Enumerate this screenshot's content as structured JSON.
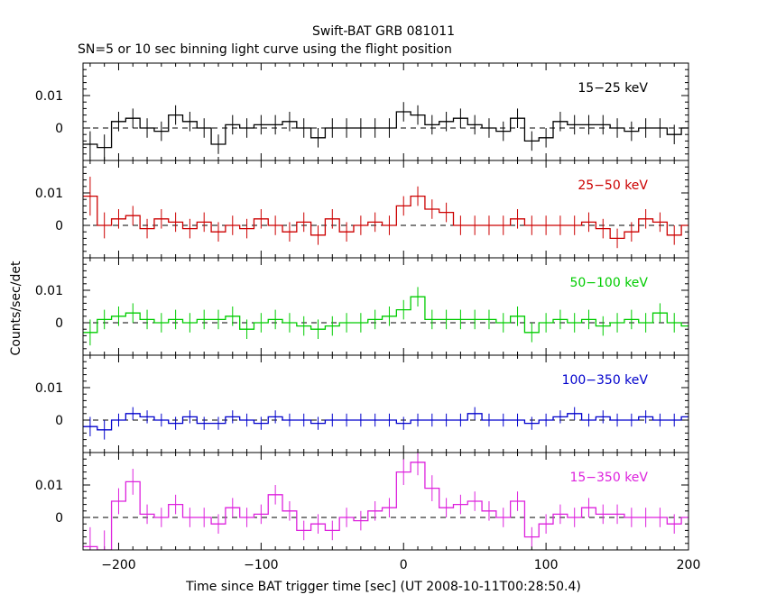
{
  "title": "Swift-BAT GRB 081011",
  "subtitle": "SN=5 or 10 sec binning light curve using the flight position",
  "ylabel": "Counts/sec/det",
  "xlabel": "Time since BAT trigger time [sec] (UT 2008-10-11T00:28:50.4)",
  "chart_data": {
    "type": "line",
    "title": "Swift-BAT GRB 081011",
    "subtitle": "SN=5 or 10 sec binning light curve using the flight position",
    "xlabel": "Time since BAT trigger time [sec] (UT 2008-10-11T00:28:50.4)",
    "ylabel": "Counts/sec/det",
    "xlim": [
      -225,
      200
    ],
    "xticks": [
      -200,
      -100,
      0,
      100,
      200
    ],
    "x_tick_labels": [
      "−200",
      "−100",
      "0",
      "100",
      "200"
    ],
    "bin_width": 10,
    "bin_starts": [
      -225,
      -215,
      -205,
      -195,
      -185,
      -175,
      -165,
      -155,
      -145,
      -135,
      -125,
      -115,
      -105,
      -95,
      -85,
      -75,
      -65,
      -55,
      -45,
      -35,
      -25,
      -15,
      -5,
      5,
      15,
      25,
      35,
      45,
      55,
      65,
      75,
      85,
      95,
      105,
      115,
      125,
      135,
      145,
      155,
      165,
      175,
      185,
      195
    ],
    "series": [
      {
        "name": "15−25 keV",
        "color": "#000000",
        "ylim": [
          -0.01,
          0.02
        ],
        "yticks": [
          0,
          0.01
        ],
        "ytick_labels": [
          "0",
          "0.01"
        ],
        "values": [
          -0.005,
          -0.006,
          0.002,
          0.003,
          0.0,
          -0.001,
          0.004,
          0.002,
          0.0,
          -0.005,
          0.001,
          0.0,
          0.001,
          0.001,
          0.002,
          0.0,
          -0.003,
          0.0,
          0.0,
          0.0,
          0.0,
          0.0,
          0.005,
          0.004,
          0.001,
          0.002,
          0.003,
          0.001,
          0.0,
          -0.001,
          0.003,
          -0.004,
          -0.003,
          0.002,
          0.001,
          0.001,
          0.001,
          0.0,
          -0.001,
          0.0,
          0.0,
          -0.002,
          0.0
        ],
        "errors": [
          0.004,
          0.004,
          0.003,
          0.003,
          0.003,
          0.003,
          0.003,
          0.003,
          0.003,
          0.003,
          0.003,
          0.003,
          0.003,
          0.003,
          0.003,
          0.003,
          0.003,
          0.003,
          0.003,
          0.003,
          0.003,
          0.003,
          0.003,
          0.003,
          0.003,
          0.003,
          0.003,
          0.003,
          0.003,
          0.003,
          0.003,
          0.003,
          0.003,
          0.003,
          0.003,
          0.003,
          0.003,
          0.003,
          0.003,
          0.003,
          0.003,
          0.003,
          0.003
        ]
      },
      {
        "name": "25−50 keV",
        "color": "#cc0000",
        "ylim": [
          -0.01,
          0.02
        ],
        "yticks": [
          0,
          0.01
        ],
        "ytick_labels": [
          "0",
          "0.01"
        ],
        "values": [
          0.009,
          0.0,
          0.002,
          0.003,
          -0.001,
          0.002,
          0.001,
          -0.001,
          0.001,
          -0.002,
          0.0,
          -0.001,
          0.002,
          0.0,
          -0.002,
          0.001,
          -0.003,
          0.002,
          -0.002,
          0.0,
          0.001,
          0.0,
          0.006,
          0.009,
          0.005,
          0.004,
          0.0,
          0.0,
          0.0,
          0.0,
          0.002,
          0.0,
          0.0,
          0.0,
          0.0,
          0.001,
          -0.001,
          -0.004,
          -0.002,
          0.002,
          0.001,
          -0.003,
          0.0
        ],
        "errors": [
          0.006,
          0.004,
          0.003,
          0.003,
          0.003,
          0.003,
          0.003,
          0.003,
          0.003,
          0.003,
          0.003,
          0.003,
          0.003,
          0.003,
          0.003,
          0.003,
          0.003,
          0.003,
          0.003,
          0.003,
          0.003,
          0.003,
          0.003,
          0.003,
          0.003,
          0.003,
          0.003,
          0.003,
          0.003,
          0.003,
          0.003,
          0.003,
          0.003,
          0.003,
          0.003,
          0.003,
          0.003,
          0.003,
          0.003,
          0.003,
          0.003,
          0.003,
          0.003
        ]
      },
      {
        "name": "50−100 keV",
        "color": "#00cc00",
        "ylim": [
          -0.01,
          0.02
        ],
        "yticks": [
          0,
          0.01
        ],
        "ytick_labels": [
          "0",
          "0.01"
        ],
        "values": [
          -0.003,
          0.001,
          0.002,
          0.003,
          0.001,
          0.0,
          0.001,
          0.0,
          0.001,
          0.001,
          0.002,
          -0.002,
          0.0,
          0.001,
          0.0,
          -0.001,
          -0.002,
          -0.001,
          0.0,
          0.0,
          0.001,
          0.002,
          0.004,
          0.008,
          0.001,
          0.001,
          0.001,
          0.001,
          0.001,
          0.0,
          0.002,
          -0.003,
          0.0,
          0.001,
          0.0,
          0.001,
          -0.001,
          0.0,
          0.001,
          0.0,
          0.003,
          0.0,
          -0.001
        ],
        "errors": [
          0.004,
          0.003,
          0.003,
          0.003,
          0.003,
          0.003,
          0.003,
          0.003,
          0.003,
          0.003,
          0.003,
          0.003,
          0.003,
          0.003,
          0.003,
          0.003,
          0.003,
          0.003,
          0.003,
          0.003,
          0.003,
          0.003,
          0.003,
          0.003,
          0.003,
          0.003,
          0.003,
          0.003,
          0.003,
          0.003,
          0.003,
          0.003,
          0.003,
          0.003,
          0.003,
          0.003,
          0.003,
          0.003,
          0.003,
          0.003,
          0.003,
          0.003,
          0.003
        ]
      },
      {
        "name": "100−350 keV",
        "color": "#0000cc",
        "ylim": [
          -0.01,
          0.02
        ],
        "yticks": [
          0,
          0.01
        ],
        "ytick_labels": [
          "0",
          "0.01"
        ],
        "values": [
          -0.002,
          -0.003,
          0.0,
          0.002,
          0.001,
          0.0,
          -0.001,
          0.001,
          -0.001,
          -0.001,
          0.001,
          0.0,
          -0.001,
          0.001,
          0.0,
          0.0,
          -0.001,
          0.0,
          0.0,
          0.0,
          0.0,
          0.0,
          -0.001,
          0.0,
          0.0,
          0.0,
          0.0,
          0.002,
          0.0,
          0.0,
          0.0,
          -0.001,
          0.0,
          0.001,
          0.002,
          0.0,
          0.001,
          0.0,
          0.0,
          0.001,
          0.0,
          0.0,
          0.001
        ],
        "errors": [
          0.003,
          0.003,
          0.002,
          0.002,
          0.002,
          0.002,
          0.002,
          0.002,
          0.002,
          0.002,
          0.002,
          0.002,
          0.002,
          0.002,
          0.002,
          0.002,
          0.002,
          0.002,
          0.002,
          0.002,
          0.002,
          0.002,
          0.002,
          0.002,
          0.002,
          0.002,
          0.002,
          0.002,
          0.002,
          0.002,
          0.002,
          0.002,
          0.002,
          0.002,
          0.002,
          0.002,
          0.002,
          0.002,
          0.002,
          0.002,
          0.002,
          0.002,
          0.002
        ]
      },
      {
        "name": "15−350 keV",
        "color": "#dd22dd",
        "ylim": [
          -0.01,
          0.02
        ],
        "yticks": [
          0,
          0.01
        ],
        "ytick_labels": [
          "0",
          "0.01"
        ],
        "values": [
          -0.009,
          -0.01,
          0.005,
          0.011,
          0.001,
          0.0,
          0.004,
          0.0,
          0.0,
          -0.002,
          0.003,
          0.0,
          0.001,
          0.007,
          0.002,
          -0.004,
          -0.002,
          -0.004,
          0.0,
          -0.001,
          0.002,
          0.003,
          0.014,
          0.017,
          0.009,
          0.003,
          0.004,
          0.005,
          0.002,
          0.0,
          0.005,
          -0.006,
          -0.002,
          0.001,
          0.0,
          0.003,
          0.001,
          0.001,
          0.0,
          0.0,
          0.0,
          -0.002,
          0.0
        ],
        "errors": [
          0.006,
          0.006,
          0.004,
          0.004,
          0.003,
          0.003,
          0.003,
          0.003,
          0.003,
          0.003,
          0.003,
          0.003,
          0.003,
          0.003,
          0.003,
          0.003,
          0.003,
          0.003,
          0.003,
          0.003,
          0.003,
          0.003,
          0.004,
          0.004,
          0.004,
          0.003,
          0.003,
          0.003,
          0.003,
          0.003,
          0.003,
          0.003,
          0.003,
          0.003,
          0.003,
          0.003,
          0.003,
          0.003,
          0.003,
          0.003,
          0.003,
          0.003,
          0.003
        ]
      }
    ]
  }
}
